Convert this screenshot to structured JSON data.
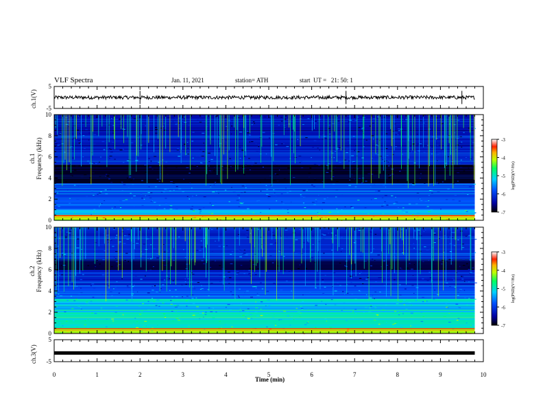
{
  "header": {
    "title": "VLF Spectra",
    "date": "Jan. 11, 2021",
    "station": "station= ATH",
    "start": "start  UT =   21: 50: 1"
  },
  "chart_data": [
    {
      "type": "line",
      "panel": "ch1-voltage",
      "ylabel": "ch.1(V)",
      "ylim": [
        -5,
        5
      ],
      "yticks": [
        "5",
        "-5"
      ],
      "xlim": [
        0,
        10
      ],
      "series": [
        {
          "description_level": 0.0,
          "noise_amplitude": 0.8
        }
      ],
      "color": "#000000"
    },
    {
      "type": "heatmap",
      "panel": "ch1-spectrogram",
      "ylabel_line1": "ch.1",
      "ylabel_line2": "Frequency (kHz)",
      "ylim": [
        0,
        10
      ],
      "yticks": [
        "0",
        "2",
        "4",
        "6",
        "8",
        "10"
      ],
      "xlim": [
        0,
        10
      ],
      "data_end_min": 9.8,
      "zlim": [
        -7,
        -3
      ],
      "colorbar_label": "log(PSD)(V²/Hz)",
      "colorbar_ticks": [
        "-3",
        "-4",
        "-5",
        "-6",
        "-7"
      ],
      "band_log_psd": [
        {
          "f": [
            0,
            0.5
          ],
          "v": -4.2
        },
        {
          "f": [
            0.5,
            1.0
          ],
          "v": -5.3
        },
        {
          "f": [
            1.0,
            2.0
          ],
          "v": -5.8
        },
        {
          "f": [
            2.0,
            3.5
          ],
          "v": -6.0
        },
        {
          "f": [
            3.5,
            5.3
          ],
          "v": -6.9
        },
        {
          "f": [
            5.3,
            6.5
          ],
          "v": -6.2
        },
        {
          "f": [
            6.5,
            10
          ],
          "v": -6.4
        }
      ]
    },
    {
      "type": "heatmap",
      "panel": "ch2-spectrogram",
      "ylabel_line1": "ch.2",
      "ylabel_line2": "Frequency (kHz)",
      "ylim": [
        0,
        10
      ],
      "yticks": [
        "0",
        "2",
        "4",
        "6",
        "8",
        "10"
      ],
      "xlim": [
        0,
        10
      ],
      "data_end_min": 9.8,
      "zlim": [
        -7,
        -3
      ],
      "colorbar_label": "log(PSD)(V²/Hz)",
      "colorbar_ticks": [
        "-3",
        "-4",
        "-5",
        "-6",
        "-7"
      ],
      "band_log_psd": [
        {
          "f": [
            0,
            0.5
          ],
          "v": -4.3
        },
        {
          "f": [
            0.5,
            2.0
          ],
          "v": -5.0
        },
        {
          "f": [
            2.0,
            3.3
          ],
          "v": -5.3
        },
        {
          "f": [
            3.3,
            4.5
          ],
          "v": -5.9
        },
        {
          "f": [
            4.5,
            6.0
          ],
          "v": -6.3
        },
        {
          "f": [
            6.0,
            7.0
          ],
          "v": -6.8
        },
        {
          "f": [
            7.0,
            10
          ],
          "v": -6.2
        }
      ]
    },
    {
      "type": "line",
      "panel": "ch3-voltage",
      "ylabel": "ch.3(V)",
      "ylim": [
        -5,
        5
      ],
      "yticks": [
        "5",
        "-5"
      ],
      "xlim": [
        0,
        10
      ],
      "series": [
        {
          "level": -1.2
        }
      ],
      "color": "#000000"
    }
  ],
  "xaxis": {
    "label": "Time (min)",
    "ticks": [
      "0",
      "1",
      "2",
      "3",
      "4",
      "5",
      "6",
      "7",
      "8",
      "9",
      "10"
    ]
  }
}
